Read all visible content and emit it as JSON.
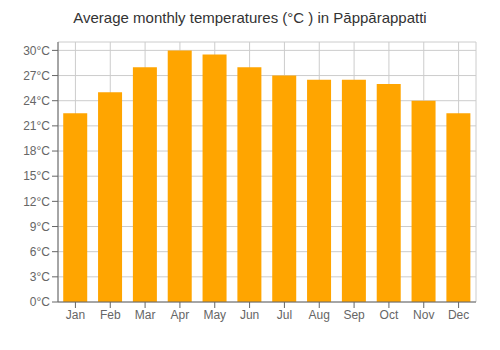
{
  "chart_data": {
    "type": "bar",
    "title": "Average monthly temperatures (°C ) in Pāppārappatti",
    "categories": [
      "Jan",
      "Feb",
      "Mar",
      "Apr",
      "May",
      "Jun",
      "Jul",
      "Aug",
      "Sep",
      "Oct",
      "Nov",
      "Dec"
    ],
    "values": [
      22.5,
      25.0,
      28.0,
      30.0,
      29.5,
      28.0,
      27.0,
      26.5,
      26.5,
      26.0,
      24.0,
      22.5
    ],
    "color": "#FFA500",
    "ylim": [
      0,
      31
    ],
    "yticks": [
      {
        "value": 0,
        "label": "0°C"
      },
      {
        "value": 3,
        "label": "3°C"
      },
      {
        "value": 6,
        "label": "6°C"
      },
      {
        "value": 9,
        "label": "9°C"
      },
      {
        "value": 12,
        "label": "12°C"
      },
      {
        "value": 15,
        "label": "15°C"
      },
      {
        "value": 18,
        "label": "18°C"
      },
      {
        "value": 21,
        "label": "21°C"
      },
      {
        "value": 24,
        "label": "24°C"
      },
      {
        "value": 27,
        "label": "27°C"
      },
      {
        "value": 30,
        "label": "30°C"
      }
    ],
    "grid": true
  }
}
